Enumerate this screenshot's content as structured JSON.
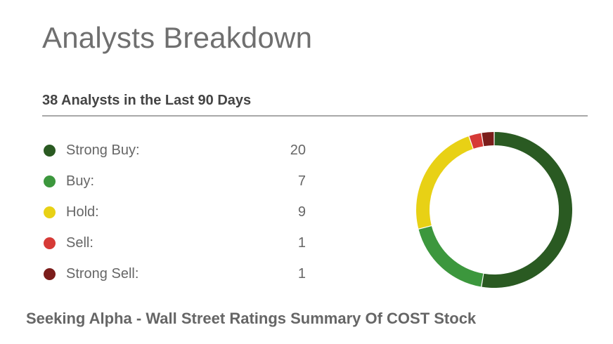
{
  "title": "Analysts Breakdown",
  "subtitle": "38 Analysts in the Last 90 Days",
  "caption": "Seeking Alpha - Wall Street Ratings Summary Of COST Stock",
  "chart_data": {
    "type": "pie",
    "variant": "donut",
    "categories": [
      "Strong Buy:",
      "Buy:",
      "Hold:",
      "Sell:",
      "Strong Sell:"
    ],
    "values": [
      20,
      7,
      9,
      1,
      1
    ],
    "colors": [
      "#2a5a22",
      "#3c973d",
      "#e8d115",
      "#d63a36",
      "#7b1d1b"
    ],
    "title": "",
    "legend": "left"
  }
}
